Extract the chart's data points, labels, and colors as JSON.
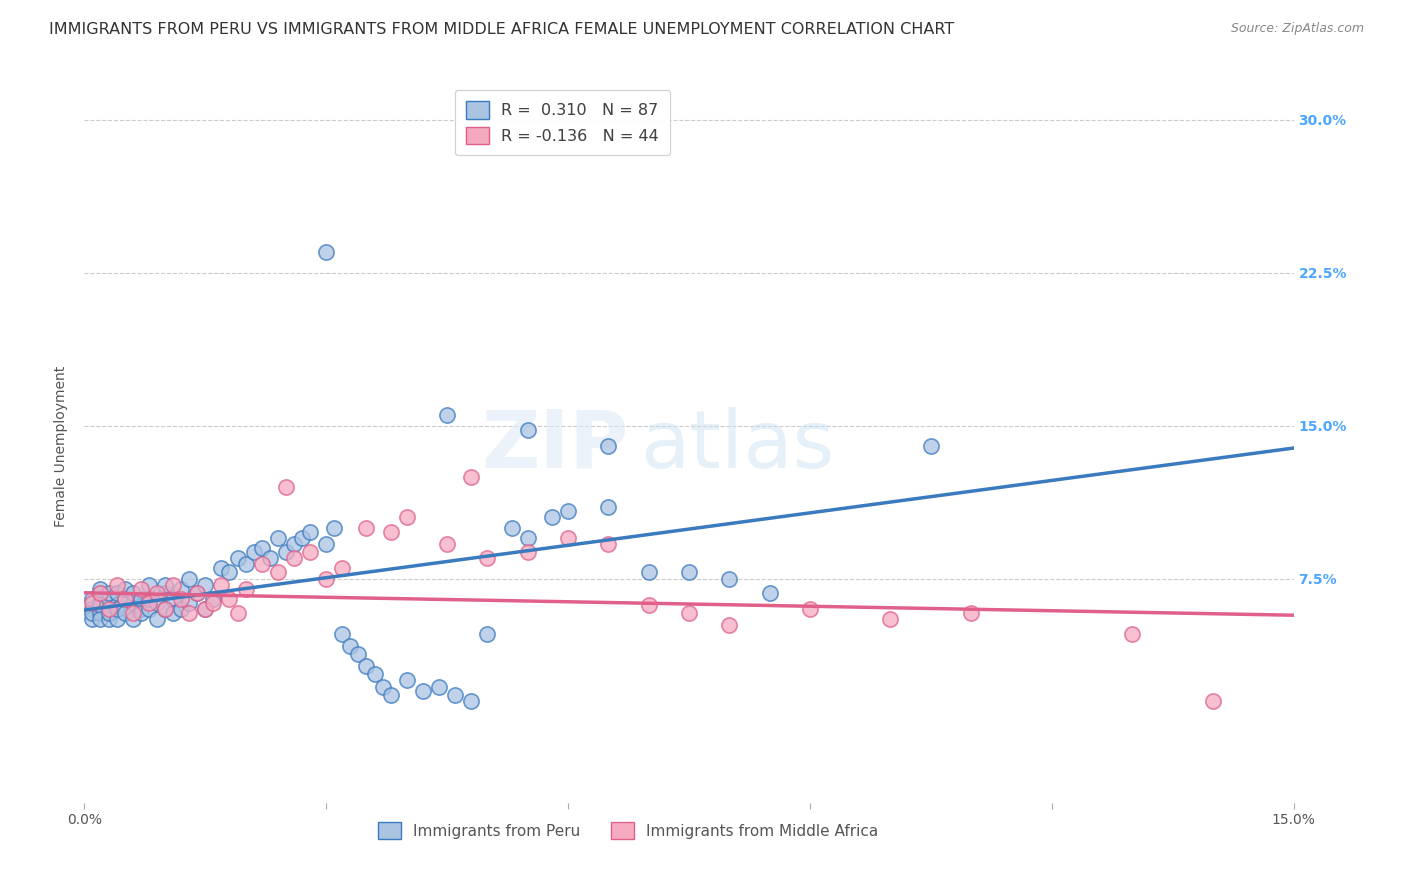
{
  "title": "IMMIGRANTS FROM PERU VS IMMIGRANTS FROM MIDDLE AFRICA FEMALE UNEMPLOYMENT CORRELATION CHART",
  "source": "Source: ZipAtlas.com",
  "ylabel": "Female Unemployment",
  "ytick_labels": [
    "7.5%",
    "15.0%",
    "22.5%",
    "30.0%"
  ],
  "ytick_values": [
    0.075,
    0.15,
    0.225,
    0.3
  ],
  "xlim": [
    0.0,
    0.15
  ],
  "ylim": [
    -0.035,
    0.315
  ],
  "legend_r1": "R =  0.310",
  "legend_n1": "N = 87",
  "legend_r2": "R = -0.136",
  "legend_n2": "N = 44",
  "color_peru": "#aac4e2",
  "color_africa": "#f5aac0",
  "color_peru_line": "#3a7abf",
  "color_africa_line": "#e0608a",
  "color_r_value": "#4da6ff",
  "watermark_zip": "ZIP",
  "watermark_atlas": "atlas",
  "peru_line_x": [
    0.0,
    0.15
  ],
  "peru_line_y": [
    0.0595,
    0.139
  ],
  "africa_line_x": [
    0.0,
    0.15
  ],
  "africa_line_y": [
    0.068,
    0.057
  ],
  "grid_color": "#cccccc",
  "grid_style": "--",
  "background_color": "#ffffff",
  "title_fontsize": 11.5,
  "axis_label_fontsize": 10,
  "tick_fontsize": 10,
  "peru_x": [
    0.001,
    0.001,
    0.001,
    0.001,
    0.002,
    0.002,
    0.002,
    0.002,
    0.002,
    0.002,
    0.003,
    0.003,
    0.003,
    0.003,
    0.003,
    0.004,
    0.004,
    0.004,
    0.004,
    0.005,
    0.005,
    0.005,
    0.006,
    0.006,
    0.006,
    0.007,
    0.007,
    0.007,
    0.008,
    0.008,
    0.008,
    0.009,
    0.009,
    0.01,
    0.01,
    0.01,
    0.011,
    0.011,
    0.012,
    0.012,
    0.013,
    0.013,
    0.014,
    0.015,
    0.015,
    0.016,
    0.017,
    0.018,
    0.019,
    0.02,
    0.021,
    0.022,
    0.023,
    0.024,
    0.025,
    0.026,
    0.027,
    0.028,
    0.03,
    0.031,
    0.032,
    0.033,
    0.034,
    0.035,
    0.036,
    0.037,
    0.038,
    0.04,
    0.042,
    0.044,
    0.046,
    0.048,
    0.05,
    0.053,
    0.055,
    0.058,
    0.06,
    0.065,
    0.07,
    0.08,
    0.03,
    0.045,
    0.055,
    0.065,
    0.075,
    0.085,
    0.105
  ],
  "peru_y": [
    0.06,
    0.055,
    0.065,
    0.058,
    0.063,
    0.058,
    0.062,
    0.068,
    0.055,
    0.07,
    0.06,
    0.065,
    0.055,
    0.068,
    0.058,
    0.062,
    0.068,
    0.055,
    0.06,
    0.065,
    0.058,
    0.07,
    0.063,
    0.055,
    0.068,
    0.06,
    0.065,
    0.058,
    0.072,
    0.06,
    0.065,
    0.063,
    0.055,
    0.068,
    0.06,
    0.072,
    0.065,
    0.058,
    0.07,
    0.06,
    0.075,
    0.063,
    0.068,
    0.06,
    0.072,
    0.065,
    0.08,
    0.078,
    0.085,
    0.082,
    0.088,
    0.09,
    0.085,
    0.095,
    0.088,
    0.092,
    0.095,
    0.098,
    0.092,
    0.1,
    0.048,
    0.042,
    0.038,
    0.032,
    0.028,
    0.022,
    0.018,
    0.025,
    0.02,
    0.022,
    0.018,
    0.015,
    0.048,
    0.1,
    0.095,
    0.105,
    0.108,
    0.11,
    0.078,
    0.075,
    0.235,
    0.155,
    0.148,
    0.14,
    0.078,
    0.068,
    0.14
  ],
  "africa_x": [
    0.001,
    0.002,
    0.003,
    0.004,
    0.005,
    0.006,
    0.007,
    0.008,
    0.009,
    0.01,
    0.011,
    0.012,
    0.013,
    0.014,
    0.015,
    0.016,
    0.017,
    0.018,
    0.019,
    0.02,
    0.022,
    0.024,
    0.026,
    0.028,
    0.03,
    0.032,
    0.035,
    0.038,
    0.04,
    0.045,
    0.05,
    0.055,
    0.06,
    0.065,
    0.07,
    0.075,
    0.08,
    0.09,
    0.1,
    0.11,
    0.13,
    0.14,
    0.025,
    0.048
  ],
  "africa_y": [
    0.063,
    0.068,
    0.06,
    0.072,
    0.065,
    0.058,
    0.07,
    0.063,
    0.068,
    0.06,
    0.072,
    0.065,
    0.058,
    0.068,
    0.06,
    0.063,
    0.072,
    0.065,
    0.058,
    0.07,
    0.082,
    0.078,
    0.085,
    0.088,
    0.075,
    0.08,
    0.1,
    0.098,
    0.105,
    0.092,
    0.085,
    0.088,
    0.095,
    0.092,
    0.062,
    0.058,
    0.052,
    0.06,
    0.055,
    0.058,
    0.048,
    0.015,
    0.12,
    0.125
  ]
}
